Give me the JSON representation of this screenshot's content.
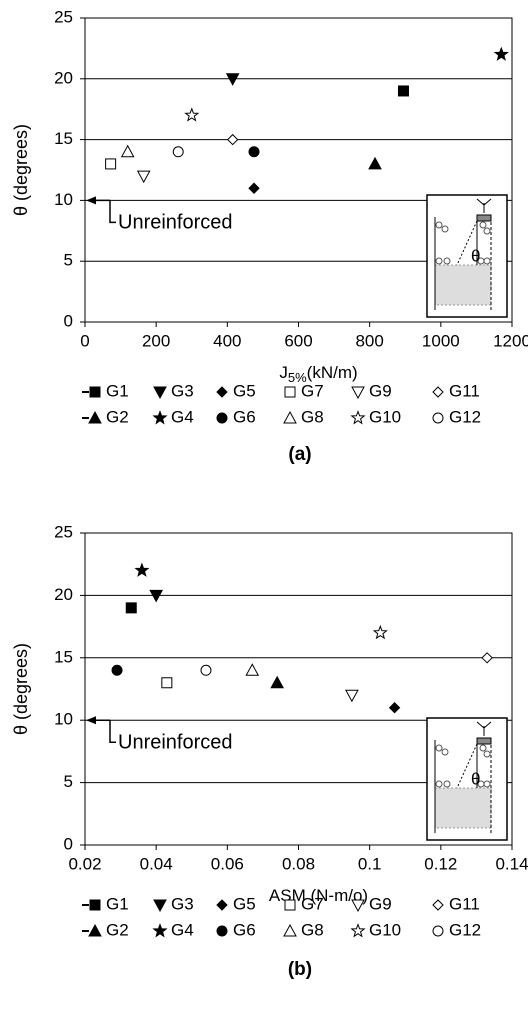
{
  "chart_data": [
    {
      "type": "scatter",
      "panel_label": "(a)",
      "ylabel": "θ  (degrees)",
      "xlabel": [
        "J",
        "5%",
        "(kN/m)"
      ],
      "xlim": [
        0,
        1200
      ],
      "xticks": [
        0,
        200,
        400,
        600,
        800,
        1000,
        1200
      ],
      "ylim": [
        0,
        25
      ],
      "yticks": [
        0,
        5,
        10,
        15,
        20,
        25
      ],
      "grid": true,
      "color": "#000000",
      "annotation": {
        "text": "Unreinforced",
        "y": 10
      },
      "series": [
        {
          "name": "G1",
          "marker": "square",
          "filled": true,
          "x": [
            895
          ],
          "values": [
            19
          ]
        },
        {
          "name": "G2",
          "marker": "triangle",
          "filled": true,
          "x": [
            815
          ],
          "values": [
            13
          ]
        },
        {
          "name": "G3",
          "marker": "triangle-down",
          "filled": true,
          "x": [
            415
          ],
          "values": [
            20
          ]
        },
        {
          "name": "G4",
          "marker": "star",
          "filled": true,
          "x": [
            1170
          ],
          "values": [
            22
          ]
        },
        {
          "name": "G5",
          "marker": "diamond",
          "filled": true,
          "x": [
            475
          ],
          "values": [
            11
          ]
        },
        {
          "name": "G6",
          "marker": "circle",
          "filled": true,
          "x": [
            475
          ],
          "values": [
            14
          ]
        },
        {
          "name": "G7",
          "marker": "square",
          "filled": false,
          "x": [
            72
          ],
          "values": [
            13
          ]
        },
        {
          "name": "G8",
          "marker": "triangle",
          "filled": false,
          "x": [
            120
          ],
          "values": [
            14
          ]
        },
        {
          "name": "G9",
          "marker": "triangle-down",
          "filled": false,
          "x": [
            165
          ],
          "values": [
            12
          ]
        },
        {
          "name": "G10",
          "marker": "star",
          "filled": false,
          "x": [
            300
          ],
          "values": [
            17
          ]
        },
        {
          "name": "G11",
          "marker": "diamond",
          "filled": false,
          "x": [
            415
          ],
          "values": [
            15
          ]
        },
        {
          "name": "G12",
          "marker": "circle",
          "filled": false,
          "x": [
            262
          ],
          "values": [
            14
          ]
        }
      ]
    },
    {
      "type": "scatter",
      "panel_label": "(b)",
      "ylabel": "θ  (degrees)",
      "xlabel": [
        "ASM (N-m/o)"
      ],
      "xlim": [
        0.02,
        0.14
      ],
      "xticks": [
        0.02,
        0.04,
        0.06,
        0.08,
        0.1,
        0.12,
        0.14
      ],
      "ylim": [
        0,
        25
      ],
      "yticks": [
        0,
        5,
        10,
        15,
        20,
        25
      ],
      "grid": true,
      "color": "#000000",
      "annotation": {
        "text": "Unreinforced",
        "y": 10
      },
      "series": [
        {
          "name": "G1",
          "marker": "square",
          "filled": true,
          "x": [
            0.033
          ],
          "values": [
            19
          ]
        },
        {
          "name": "G2",
          "marker": "triangle",
          "filled": true,
          "x": [
            0.074
          ],
          "values": [
            13
          ]
        },
        {
          "name": "G3",
          "marker": "triangle-down",
          "filled": true,
          "x": [
            0.04
          ],
          "values": [
            20
          ]
        },
        {
          "name": "G4",
          "marker": "star",
          "filled": true,
          "x": [
            0.036
          ],
          "values": [
            22
          ]
        },
        {
          "name": "G5",
          "marker": "diamond",
          "filled": true,
          "x": [
            0.107
          ],
          "values": [
            11
          ]
        },
        {
          "name": "G6",
          "marker": "circle",
          "filled": true,
          "x": [
            0.029
          ],
          "values": [
            14
          ]
        },
        {
          "name": "G7",
          "marker": "square",
          "filled": false,
          "x": [
            0.043
          ],
          "values": [
            13
          ]
        },
        {
          "name": "G8",
          "marker": "triangle",
          "filled": false,
          "x": [
            0.067
          ],
          "values": [
            14
          ]
        },
        {
          "name": "G9",
          "marker": "triangle-down",
          "filled": false,
          "x": [
            0.095
          ],
          "values": [
            12
          ]
        },
        {
          "name": "G10",
          "marker": "star",
          "filled": false,
          "x": [
            0.103
          ],
          "values": [
            17
          ]
        },
        {
          "name": "G11",
          "marker": "diamond",
          "filled": false,
          "x": [
            0.133
          ],
          "values": [
            15
          ]
        },
        {
          "name": "G12",
          "marker": "circle",
          "filled": false,
          "x": [
            0.054
          ],
          "values": [
            14
          ]
        }
      ]
    }
  ]
}
